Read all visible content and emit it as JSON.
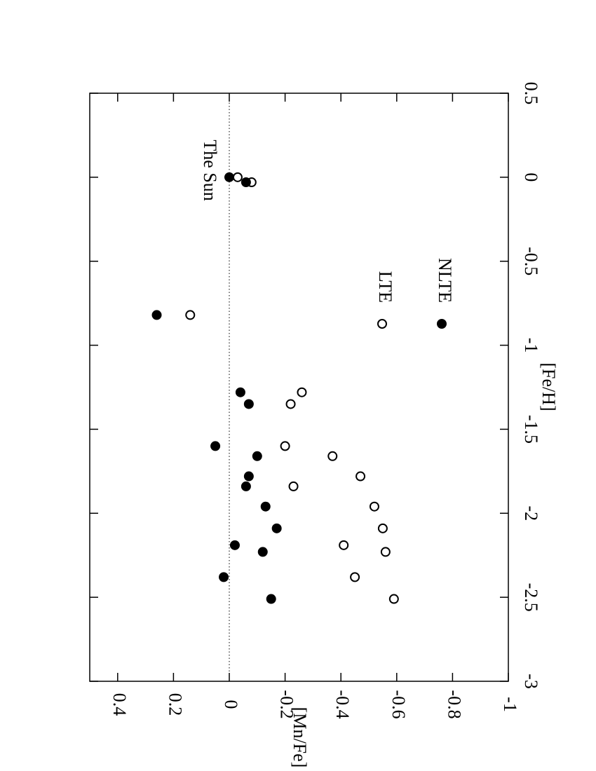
{
  "chart_data": {
    "type": "scatter",
    "xlabel": "[Fe/H]",
    "ylabel": "[Mn/Fe]",
    "xlim": [
      0.5,
      -3
    ],
    "xticks": [
      0.5,
      0,
      -0.5,
      -1,
      -1.5,
      -2,
      -2.5,
      -3
    ],
    "ylim": [
      0.5,
      -1
    ],
    "yticks": [
      0.4,
      0.2,
      0,
      -0.2,
      -0.4,
      -0.6,
      -0.8,
      -1
    ],
    "reference_line": 0,
    "annotation": "The Sun",
    "series": [
      {
        "name": "LTE",
        "marker": "open",
        "color": "#000000",
        "x": [
          0,
          -0.03,
          -0.82,
          -1.28,
          -1.35,
          -1.6,
          -1.66,
          -1.78,
          -1.84,
          -1.96,
          -2.09,
          -2.19,
          -2.23,
          -2.38,
          -2.51
        ],
        "y": [
          -0.03,
          -0.08,
          0.14,
          -0.26,
          -0.22,
          -0.2,
          -0.37,
          -0.47,
          -0.23,
          -0.52,
          -0.55,
          -0.41,
          -0.56,
          -0.45,
          -0.59
        ]
      },
      {
        "name": "NLTE",
        "marker": "filled",
        "color": "#000000",
        "x": [
          0,
          -0.03,
          -0.82,
          -1.28,
          -1.35,
          -1.6,
          -1.66,
          -1.78,
          -1.84,
          -1.96,
          -2.09,
          -2.19,
          -2.23,
          -2.38,
          -2.51
        ],
        "y": [
          0,
          -0.06,
          0.26,
          -0.04,
          -0.07,
          0.05,
          -0.1,
          -0.07,
          -0.06,
          -0.13,
          -0.17,
          -0.02,
          -0.12,
          0.02,
          -0.15
        ]
      }
    ]
  }
}
